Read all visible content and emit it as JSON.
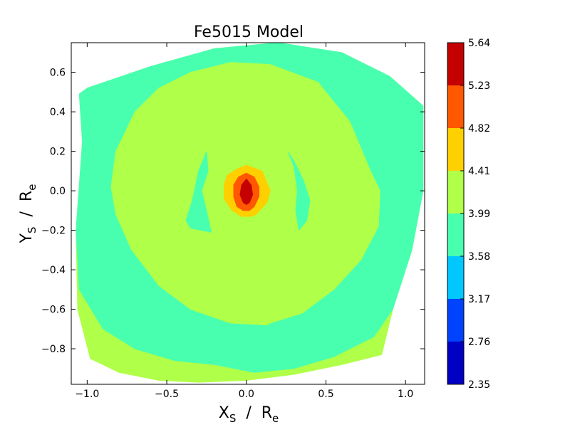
{
  "chart_data": {
    "type": "contour",
    "title": "Fe5015 Model",
    "xlabel": {
      "main": "X",
      "sub": "S",
      "sep": "  /  ",
      "main2": "R",
      "sub2": "e"
    },
    "ylabel": {
      "main": "Y",
      "sub": "S",
      "sep": "  /  ",
      "main2": "R",
      "sub2": "e"
    },
    "xlim": [
      -1.1,
      1.12
    ],
    "ylim": [
      -0.98,
      0.75
    ],
    "xticks": [
      -1.0,
      -0.5,
      0.0,
      0.5,
      1.0
    ],
    "xtick_labels": [
      "−1.0",
      "−0.5",
      "0.0",
      "0.5",
      "1.0"
    ],
    "yticks": [
      -0.8,
      -0.6,
      -0.4,
      -0.2,
      0.0,
      0.2,
      0.4,
      0.6
    ],
    "ytick_labels": [
      "−0.8",
      "−0.6",
      "−0.4",
      "−0.2",
      "0.0",
      "0.2",
      "0.4",
      "0.6"
    ],
    "colorbar": {
      "levels": [
        2.35,
        2.76,
        3.17,
        3.58,
        3.99,
        4.41,
        4.82,
        5.23,
        5.64
      ],
      "labels": [
        "2.35",
        "2.76",
        "3.17",
        "3.58",
        "3.99",
        "4.41",
        "4.82",
        "5.23",
        "5.64"
      ],
      "colors": [
        "#0000c4",
        "#0043ff",
        "#00c8ff",
        "#48ffb0",
        "#b0ff48",
        "#ffd000",
        "#ff5800",
        "#c40000"
      ]
    },
    "regions": [
      {
        "name": "outer-band",
        "level_index": 4,
        "color": "#b0ff48",
        "points": [
          [
            -1.05,
            0.49
          ],
          [
            -1.03,
            0.25
          ],
          [
            -1.07,
            -0.2
          ],
          [
            -1.06,
            -0.6
          ],
          [
            -0.98,
            -0.85
          ],
          [
            -0.8,
            -0.92
          ],
          [
            -0.55,
            -0.96
          ],
          [
            -0.3,
            -0.97
          ],
          [
            0.0,
            -0.96
          ],
          [
            0.3,
            -0.93
          ],
          [
            0.6,
            -0.88
          ],
          [
            0.85,
            -0.83
          ],
          [
            0.92,
            -0.6
          ],
          [
            1.04,
            -0.3
          ],
          [
            1.11,
            0.0
          ],
          [
            1.11,
            0.43
          ],
          [
            0.9,
            0.58
          ],
          [
            0.6,
            0.7
          ],
          [
            0.2,
            0.75
          ],
          [
            -0.2,
            0.72
          ],
          [
            -0.6,
            0.63
          ],
          [
            -1.0,
            0.52
          ]
        ]
      },
      {
        "name": "green-ring",
        "level_index": 3,
        "color": "#48ffb0",
        "points": [
          [
            -1.05,
            0.49
          ],
          [
            -1.03,
            0.25
          ],
          [
            -1.07,
            -0.2
          ],
          [
            -1.05,
            -0.5
          ],
          [
            -0.9,
            -0.7
          ],
          [
            -0.7,
            -0.8
          ],
          [
            -0.45,
            -0.86
          ],
          [
            -0.2,
            -0.88
          ],
          [
            0.05,
            -0.92
          ],
          [
            0.3,
            -0.9
          ],
          [
            0.55,
            -0.84
          ],
          [
            0.8,
            -0.74
          ],
          [
            0.92,
            -0.6
          ],
          [
            1.04,
            -0.3
          ],
          [
            1.11,
            0.0
          ],
          [
            1.11,
            0.43
          ],
          [
            0.9,
            0.58
          ],
          [
            0.6,
            0.7
          ],
          [
            0.2,
            0.75
          ],
          [
            -0.2,
            0.72
          ],
          [
            -0.6,
            0.63
          ],
          [
            -1.0,
            0.52
          ]
        ]
      },
      {
        "name": "yellow-green-disk",
        "level_index": 4,
        "color": "#b0ff48",
        "points": [
          [
            -0.85,
            0.02
          ],
          [
            -0.82,
            0.2
          ],
          [
            -0.7,
            0.4
          ],
          [
            -0.55,
            0.52
          ],
          [
            -0.35,
            0.6
          ],
          [
            -0.1,
            0.65
          ],
          [
            0.15,
            0.64
          ],
          [
            0.45,
            0.55
          ],
          [
            0.65,
            0.35
          ],
          [
            0.78,
            0.1
          ],
          [
            0.84,
            0.0
          ],
          [
            0.83,
            -0.18
          ],
          [
            0.72,
            -0.35
          ],
          [
            0.55,
            -0.5
          ],
          [
            0.35,
            -0.62
          ],
          [
            0.15,
            -0.67
          ],
          [
            0.13,
            -0.68
          ],
          [
            -0.1,
            -0.67
          ],
          [
            -0.35,
            -0.6
          ],
          [
            -0.55,
            -0.48
          ],
          [
            -0.72,
            -0.3
          ],
          [
            -0.82,
            -0.12
          ]
        ]
      },
      {
        "name": "left-arc",
        "level_index": 3,
        "color": "#48ffb0",
        "points": [
          [
            -0.25,
            0.2
          ],
          [
            -0.3,
            0.1
          ],
          [
            -0.34,
            -0.05
          ],
          [
            -0.38,
            -0.15
          ],
          [
            -0.35,
            -0.19
          ],
          [
            -0.22,
            -0.21
          ],
          [
            -0.25,
            -0.1
          ],
          [
            -0.28,
            0.0
          ],
          [
            -0.24,
            0.1
          ]
        ]
      },
      {
        "name": "right-arc",
        "level_index": 3,
        "color": "#48ffb0",
        "points": [
          [
            0.26,
            0.2
          ],
          [
            0.3,
            0.15
          ],
          [
            0.36,
            0.05
          ],
          [
            0.4,
            -0.05
          ],
          [
            0.38,
            -0.15
          ],
          [
            0.33,
            -0.2
          ],
          [
            0.31,
            -0.1
          ],
          [
            0.32,
            0.0
          ],
          [
            0.3,
            0.12
          ]
        ]
      },
      {
        "name": "core-orange",
        "level_index": 5,
        "color": "#ffd000",
        "points": [
          [
            0.0,
            0.13
          ],
          [
            0.1,
            0.1
          ],
          [
            0.15,
            0.0
          ],
          [
            0.13,
            -0.06
          ],
          [
            0.06,
            -0.12
          ],
          [
            0.03,
            -0.13
          ],
          [
            -0.03,
            -0.13
          ],
          [
            -0.09,
            -0.1
          ],
          [
            -0.14,
            -0.04
          ],
          [
            -0.14,
            0.03
          ],
          [
            -0.12,
            0.08
          ],
          [
            -0.06,
            0.11
          ]
        ]
      },
      {
        "name": "core-redorange",
        "level_index": 6,
        "color": "#ff5800",
        "points": [
          [
            0.0,
            0.09
          ],
          [
            0.05,
            0.07
          ],
          [
            0.08,
            0.02
          ],
          [
            0.08,
            -0.03
          ],
          [
            0.05,
            -0.08
          ],
          [
            0.02,
            -0.1
          ],
          [
            -0.02,
            -0.1
          ],
          [
            -0.06,
            -0.08
          ],
          [
            -0.08,
            -0.03
          ],
          [
            -0.08,
            0.03
          ],
          [
            -0.05,
            0.07
          ]
        ]
      },
      {
        "name": "core-red",
        "level_index": 7,
        "color": "#c40000",
        "points": [
          [
            0.0,
            0.06
          ],
          [
            0.03,
            0.03
          ],
          [
            0.04,
            -0.02
          ],
          [
            0.02,
            -0.06
          ],
          [
            0.0,
            -0.07
          ],
          [
            -0.02,
            -0.06
          ],
          [
            -0.04,
            -0.02
          ],
          [
            -0.03,
            0.03
          ]
        ]
      }
    ]
  }
}
